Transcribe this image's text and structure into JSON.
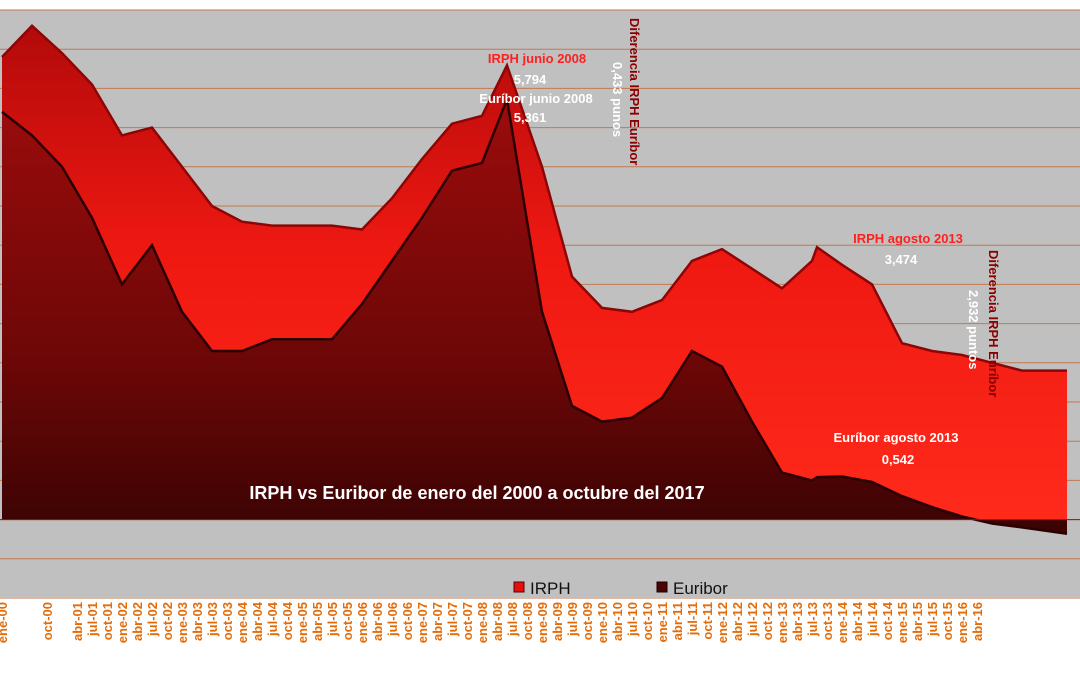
{
  "chart_data": {
    "type": "area",
    "title": "IRPH vs Euribor de enero del 2000 a octubre  del 2017",
    "xlabel": "",
    "ylabel": "",
    "ylim": [
      -1,
      6.5
    ],
    "grid": true,
    "legend_position": "bottom",
    "colors": {
      "irph": "#e3100e",
      "euribor": "#5a0505",
      "grid": "#c27a50",
      "plot_bg": "#c0c0c0",
      "axis_text": "#e36c0a"
    },
    "x_tick_labels": [
      "ene-00",
      "oct-00",
      "abr-01",
      "jul-01",
      "oct-01",
      "ene-02",
      "abr-02",
      "jul-02",
      "oct-02",
      "ene-03",
      "abr-03",
      "jul-03",
      "oct-03",
      "ene-04",
      "abr-04",
      "jul-04",
      "oct-04",
      "ene-05",
      "abr-05",
      "jul-05",
      "oct-05",
      "ene-06",
      "abr-06",
      "jul-06",
      "oct-06",
      "ene-07",
      "abr-07",
      "jul-07",
      "oct-07",
      "ene-08",
      "abr-08",
      "jul-08",
      "oct-08",
      "ene-09",
      "abr-09",
      "jul-09",
      "oct-09",
      "ene-10",
      "abr-10",
      "jul-10",
      "oct-10",
      "ene-11",
      "abr-11",
      "jul-11",
      "oct-11",
      "ene-12",
      "abr-12",
      "jul-12",
      "oct-12",
      "ene-13",
      "abr-13",
      "jul-13",
      "oct-13",
      "ene-14",
      "abr-14",
      "jul-14",
      "oct-14",
      "ene-15",
      "abr-15",
      "jul-15",
      "oct-15",
      "ene-16",
      "abr-16"
    ],
    "series": [
      {
        "name": "IRPH",
        "x": [
          "ene-00",
          "jul-00",
          "ene-01",
          "jul-01",
          "ene-02",
          "jul-02",
          "ene-03",
          "jul-03",
          "ene-04",
          "jul-04",
          "ene-05",
          "jul-05",
          "ene-06",
          "jul-06",
          "ene-07",
          "jul-07",
          "ene-08",
          "jun-08",
          "ene-09",
          "jul-09",
          "ene-10",
          "jul-10",
          "ene-11",
          "jul-11",
          "ene-12",
          "jul-12",
          "ene-13",
          "jul-13",
          "ago-13",
          "ene-14",
          "jul-14",
          "ene-15",
          "jul-15",
          "ene-16",
          "jul-16",
          "ene-17",
          "oct-17"
        ],
        "values": [
          5.9,
          6.3,
          5.95,
          5.55,
          4.9,
          5.0,
          4.5,
          4.0,
          3.8,
          3.75,
          3.75,
          3.75,
          3.7,
          4.1,
          4.6,
          5.05,
          5.15,
          5.794,
          4.5,
          3.1,
          2.7,
          2.65,
          2.8,
          3.3,
          3.45,
          3.2,
          2.95,
          3.3,
          3.474,
          3.25,
          3.0,
          2.25,
          2.15,
          2.1,
          2.0,
          1.9,
          1.9
        ]
      },
      {
        "name": "Euribor",
        "x": [
          "ene-00",
          "jul-00",
          "ene-01",
          "jul-01",
          "ene-02",
          "jul-02",
          "ene-03",
          "jul-03",
          "ene-04",
          "jul-04",
          "ene-05",
          "jul-05",
          "ene-06",
          "jul-06",
          "ene-07",
          "jul-07",
          "ene-08",
          "jun-08",
          "ene-09",
          "jul-09",
          "ene-10",
          "jul-10",
          "ene-11",
          "jul-11",
          "ene-12",
          "jul-12",
          "ene-13",
          "jul-13",
          "ago-13",
          "ene-14",
          "jul-14",
          "ene-15",
          "jul-15",
          "ene-16",
          "jul-16",
          "ene-17",
          "oct-17"
        ],
        "values": [
          5.2,
          4.9,
          4.5,
          3.85,
          3.0,
          3.5,
          2.65,
          2.15,
          2.15,
          2.3,
          2.3,
          2.3,
          2.75,
          3.3,
          3.85,
          4.45,
          4.55,
          5.361,
          2.65,
          1.45,
          1.25,
          1.3,
          1.55,
          2.15,
          1.95,
          1.25,
          0.6,
          0.5,
          0.542,
          0.55,
          0.48,
          0.3,
          0.16,
          0.04,
          -0.05,
          -0.1,
          -0.18
        ]
      }
    ],
    "annotations": {
      "irph_2008_label": "IRPH junio 2008",
      "irph_2008_value": "5,794",
      "euribor_2008_label": "Euríbor junio 2008",
      "euribor_2008_value": "5,361",
      "diff_2008_label": "Diferencia IRPH Euríbor",
      "diff_2008_value": "0,433 punos",
      "irph_2013_label": "IRPH agosto 2013",
      "irph_2013_value": "3,474",
      "euribor_2013_label": "Euríbor agosto 2013",
      "euribor_2013_value": "0,542",
      "diff_2013_label": "Diferencia IRPH Euríbor",
      "diff_2013_value": "2,932 puntos"
    },
    "legend": {
      "irph": "IRPH",
      "euribor": "Euribor"
    }
  }
}
